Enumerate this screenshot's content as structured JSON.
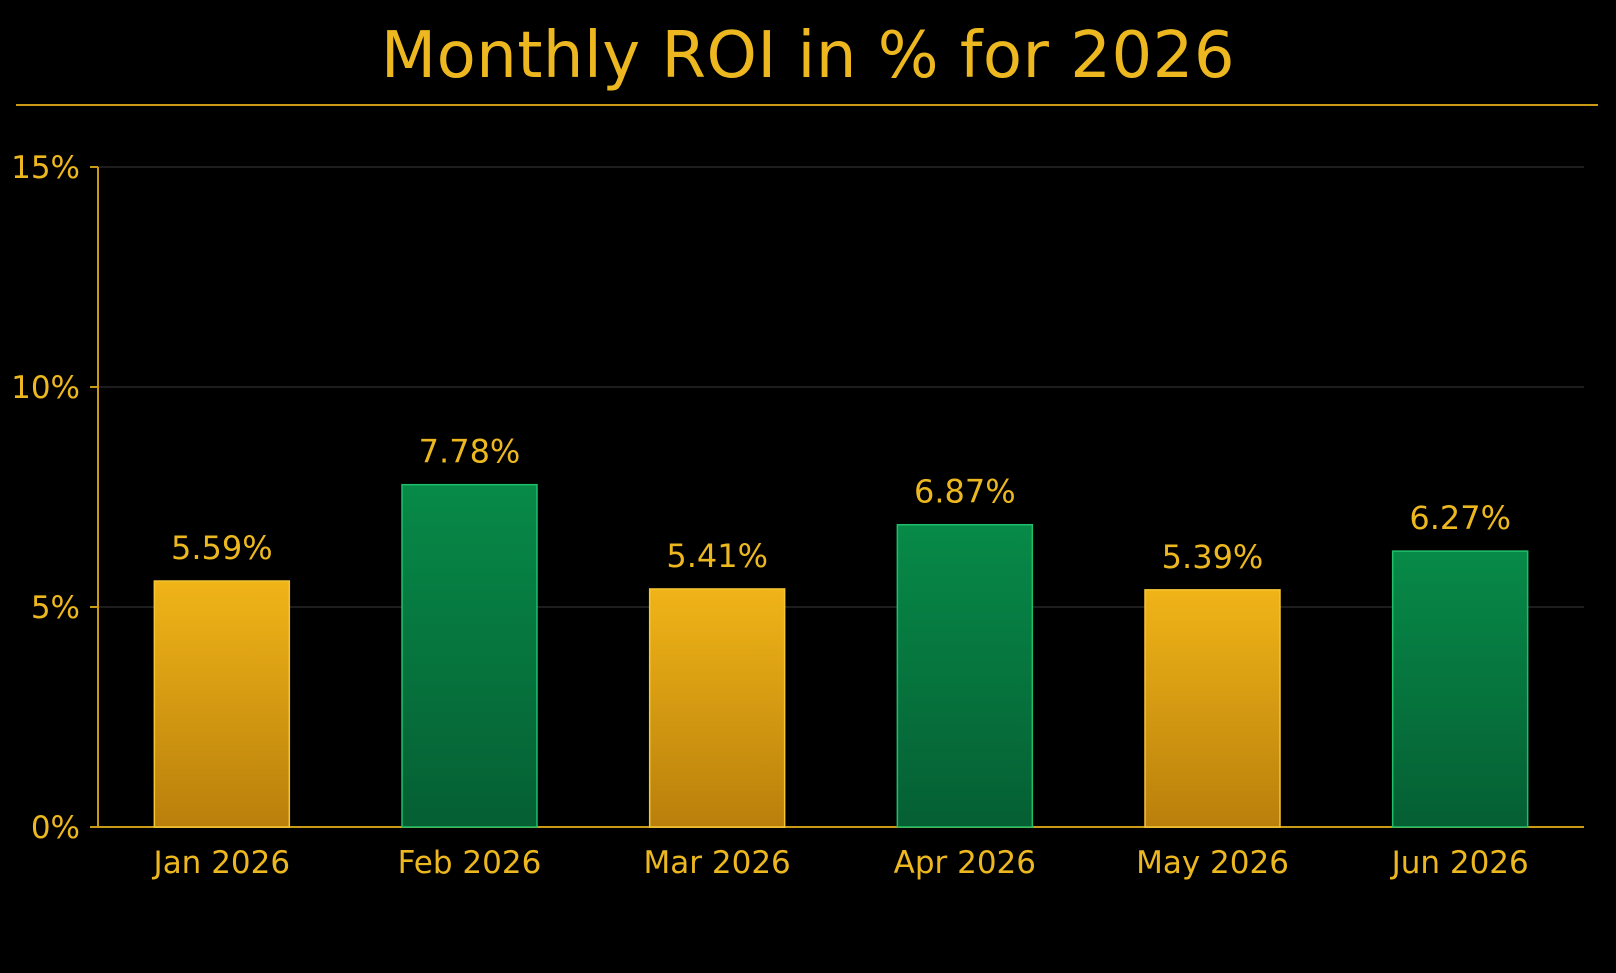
{
  "chart_data": {
    "type": "bar",
    "title": "Monthly ROI in % for 2026",
    "xlabel": "",
    "ylabel": "",
    "categories": [
      "Jan 2026",
      "Feb 2026",
      "Mar 2026",
      "Apr 2026",
      "May 2026",
      "Jun 2026"
    ],
    "values": [
      5.59,
      7.78,
      5.41,
      6.87,
      5.39,
      6.27
    ],
    "value_labels": [
      "5.59%",
      "7.78%",
      "5.41%",
      "6.87%",
      "5.39%",
      "6.27%"
    ],
    "bar_colors": [
      "gold",
      "green",
      "gold",
      "green",
      "gold",
      "green"
    ],
    "ylim": [
      0,
      15
    ],
    "yticks": [
      0,
      5,
      10,
      15
    ],
    "ytick_labels": [
      "0%",
      "5%",
      "10%",
      "15%"
    ],
    "grid": true,
    "legend": "none"
  },
  "colors": {
    "background": "#000000",
    "text": "#EDB81F",
    "axis": "#C99A16",
    "grid": "#3A3A3A",
    "gold_top": "#F0B418",
    "gold_bottom": "#B97F0B",
    "gold_edge": "#F5C636",
    "green_top": "#078A48",
    "green_bottom": "#055F33",
    "green_edge": "#1FBF6A"
  }
}
